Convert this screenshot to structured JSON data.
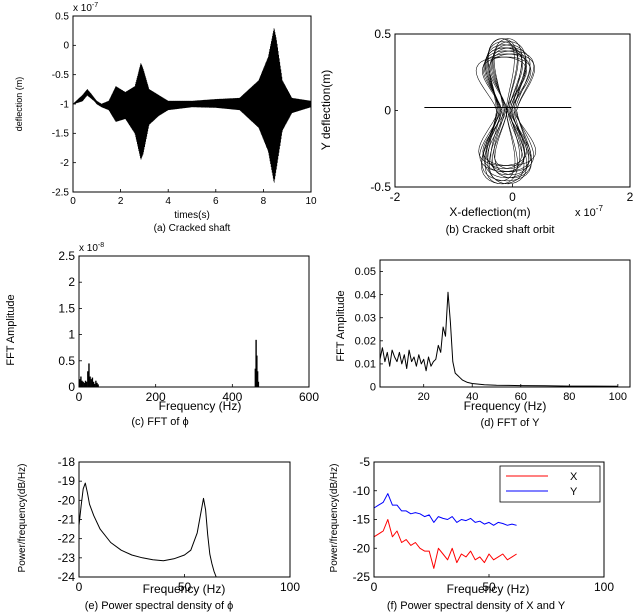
{
  "chart_data": [
    {
      "id": "a",
      "type": "line",
      "caption": "(a) Cracked shaft",
      "xlabel": "times(s)",
      "ylabel": "deflection (m)",
      "y_exponent": "x 10^-7",
      "xlim": [
        0,
        10
      ],
      "ylim": [
        -2.5,
        0.5
      ],
      "x_ticks": [
        0,
        2,
        4,
        6,
        8,
        10
      ],
      "y_ticks": [
        -2.5,
        -2,
        -1.5,
        -1,
        -0.5,
        0,
        0.5
      ],
      "y_tick_labels": [
        "-2.5",
        "-2",
        "-1.5",
        "-1",
        "-0.5",
        "0",
        "0.5"
      ],
      "series": [
        {
          "x": [
            0,
            0.4,
            0.6,
            0.75,
            0.9,
            1.0,
            1.2,
            1.5,
            1.8,
            2.2,
            2.6,
            2.85,
            2.95,
            3.2,
            3.6,
            4.0,
            5.0,
            6.0,
            7.0,
            7.8,
            8.2,
            8.45,
            8.55,
            8.8,
            9.2,
            10.0
          ],
          "upper": [
            -1.0,
            -0.85,
            -0.75,
            -0.82,
            -0.9,
            -0.95,
            -1.0,
            -0.95,
            -0.7,
            -0.8,
            -0.7,
            -0.3,
            -0.4,
            -0.75,
            -0.85,
            -0.95,
            -0.95,
            -0.92,
            -0.9,
            -0.6,
            -0.2,
            0.3,
            0.1,
            -0.6,
            -0.9,
            -0.95
          ],
          "lower": [
            -1.0,
            -0.95,
            -0.85,
            -0.9,
            -0.95,
            -1.0,
            -1.05,
            -1.1,
            -1.3,
            -1.25,
            -1.5,
            -1.95,
            -1.85,
            -1.35,
            -1.2,
            -1.1,
            -1.05,
            -1.06,
            -1.1,
            -1.4,
            -1.8,
            -2.35,
            -2.1,
            -1.45,
            -1.15,
            -1.05
          ]
        }
      ]
    },
    {
      "id": "b",
      "type": "line",
      "caption": "(b) Cracked shaft orbit",
      "xlabel": "X-deflection(m)",
      "ylabel": "Y deflection(m)",
      "x_exponent": "x 10^-7",
      "xlim": [
        -2,
        2
      ],
      "ylim": [
        -0.5,
        0.5
      ],
      "x_ticks": [
        -2,
        0,
        2
      ],
      "y_ticks": [
        -0.5,
        0,
        0.5
      ],
      "y_tick_labels": [
        "-0.5",
        "0",
        "0.5"
      ],
      "series": [
        {
          "x_center": -0.1,
          "y_top": 0.47,
          "y_bottom": -0.48,
          "half_width_top": 0.85,
          "half_width_bottom": 0.9,
          "waist": 0.08,
          "baseline": {
            "x": [
              -1.5,
              1.0
            ],
            "y": 0.02
          }
        }
      ]
    },
    {
      "id": "c",
      "type": "bar",
      "caption": "(c)  FFT of  ϕ",
      "xlabel": "Frequency (Hz)",
      "ylabel": "FFT Amplitude",
      "y_exponent": "x 10^-8",
      "xlim": [
        0,
        600
      ],
      "ylim": [
        0,
        2.5
      ],
      "x_ticks": [
        0,
        200,
        400,
        600
      ],
      "y_ticks": [
        0,
        0.5,
        1,
        1.5,
        2,
        2.5
      ],
      "y_tick_labels": [
        "0",
        "0.5",
        "1",
        "1.5",
        "2",
        "2.5"
      ],
      "series": [
        {
          "x": [
            2,
            5,
            8,
            11,
            14,
            17,
            20,
            23,
            26,
            29,
            32,
            35,
            38,
            41,
            44,
            47,
            50,
            460,
            462,
            464,
            466,
            468
          ],
          "y": [
            0.15,
            0.2,
            0.12,
            0.1,
            0.08,
            0.12,
            0.1,
            0.3,
            0.45,
            0.2,
            0.15,
            0.18,
            0.1,
            0.06,
            0.12,
            0.08,
            0.05,
            0.35,
            0.9,
            0.6,
            0.3,
            0.1
          ]
        }
      ]
    },
    {
      "id": "d",
      "type": "line",
      "caption": "(d)   FFT of Y",
      "xlabel": "Frequency (Hz)",
      "ylabel": "FFT Amplitude",
      "xlim": [
        2,
        105
      ],
      "ylim": [
        0,
        0.055
      ],
      "x_ticks": [
        20,
        40,
        60,
        80,
        100
      ],
      "y_ticks": [
        0,
        0.01,
        0.02,
        0.03,
        0.04,
        0.05
      ],
      "y_tick_labels": [
        "0",
        "0.01",
        "0.02",
        "0.03",
        "0.04",
        "0.05"
      ],
      "series": [
        {
          "x": [
            2,
            3,
            4,
            5,
            6,
            7,
            8,
            9,
            10,
            11,
            12,
            13,
            14,
            15,
            16,
            17,
            18,
            19,
            20,
            21,
            22,
            23,
            24,
            25,
            26,
            27,
            28,
            29,
            30,
            31,
            32,
            33,
            34,
            35,
            36,
            38,
            40,
            45,
            50,
            55,
            60,
            70,
            80,
            90,
            100
          ],
          "y": [
            0.012,
            0.017,
            0.011,
            0.015,
            0.009,
            0.016,
            0.013,
            0.011,
            0.015,
            0.01,
            0.014,
            0.008,
            0.016,
            0.011,
            0.013,
            0.009,
            0.014,
            0.01,
            0.012,
            0.007,
            0.013,
            0.009,
            0.011,
            0.012,
            0.018,
            0.015,
            0.026,
            0.022,
            0.041,
            0.028,
            0.011,
            0.006,
            0.005,
            0.004,
            0.003,
            0.002,
            0.0015,
            0.001,
            0.0008,
            0.0007,
            0.0006,
            0.0005,
            0.0004,
            0.0004,
            0.0003
          ]
        }
      ]
    },
    {
      "id": "e",
      "type": "line",
      "caption": "(e) Power spectral density of  ϕ",
      "xlabel": "Frequency (Hz)",
      "ylabel": "Power/frequency(dB/Hz)",
      "xlim": [
        0,
        100
      ],
      "ylim": [
        -24,
        -18
      ],
      "x_ticks": [
        0,
        50,
        100
      ],
      "y_ticks": [
        -24,
        -23,
        -22,
        -21,
        -20,
        -19,
        -18
      ],
      "y_tick_labels": [
        "-24",
        "-23",
        "-22",
        "-21",
        "-20",
        "-19",
        "-18"
      ],
      "series": [
        {
          "x": [
            0,
            1,
            2,
            3,
            4,
            5,
            7,
            10,
            15,
            20,
            25,
            30,
            35,
            40,
            45,
            50,
            53,
            56,
            58,
            59,
            60,
            61,
            62,
            63,
            64,
            65
          ],
          "y": [
            -21.3,
            -20.3,
            -19.4,
            -19.1,
            -19.6,
            -20.2,
            -20.8,
            -21.5,
            -22.2,
            -22.6,
            -22.85,
            -23.0,
            -23.1,
            -23.15,
            -23.05,
            -22.85,
            -22.6,
            -21.7,
            -20.5,
            -19.9,
            -20.5,
            -21.8,
            -22.8,
            -23.3,
            -23.7,
            -24.0
          ]
        }
      ]
    },
    {
      "id": "f",
      "type": "line",
      "caption": "(f) Power spectral density of  X and Y",
      "xlabel": "Frequency (Hz)",
      "ylabel": "Power/frequency(dB/Hz)",
      "xlim": [
        0,
        100
      ],
      "ylim": [
        -25,
        -5
      ],
      "x_ticks": [
        0,
        50,
        100
      ],
      "y_ticks": [
        -25,
        -20,
        -15,
        -10,
        -5
      ],
      "y_tick_labels": [
        "-25",
        "-20",
        "-15",
        "-10",
        "-5"
      ],
      "legend_position": "top-right",
      "series": [
        {
          "name": "X",
          "color": "#ff0000",
          "x": [
            0,
            2,
            4,
            6,
            8,
            10,
            12,
            14,
            16,
            18,
            20,
            22,
            24,
            26,
            28,
            30,
            32,
            34,
            36,
            38,
            40,
            42,
            44,
            46,
            48,
            50,
            52,
            54,
            56,
            58,
            60,
            62
          ],
          "y": [
            -18,
            -17.5,
            -17,
            -15,
            -18,
            -17,
            -19,
            -18.5,
            -19.5,
            -19,
            -20,
            -20.5,
            -20.5,
            -23.5,
            -20,
            -21,
            -22,
            -20,
            -22.5,
            -21,
            -21.5,
            -20.5,
            -22,
            -21.5,
            -22.5,
            -21,
            -22,
            -21.5,
            -21,
            -22,
            -21.5,
            -21
          ]
        },
        {
          "name": "Y",
          "color": "#0000ff",
          "x": [
            0,
            2,
            4,
            6,
            8,
            10,
            12,
            14,
            16,
            18,
            20,
            22,
            24,
            26,
            28,
            30,
            32,
            34,
            36,
            38,
            40,
            42,
            44,
            46,
            48,
            50,
            52,
            54,
            56,
            58,
            60,
            62
          ],
          "y": [
            -13,
            -12.5,
            -12,
            -10.5,
            -12.5,
            -12.5,
            -13.5,
            -13.5,
            -14,
            -13.8,
            -14,
            -14.5,
            -14.2,
            -15.5,
            -14.5,
            -14.8,
            -15,
            -14.5,
            -15.5,
            -15,
            -15.2,
            -14.8,
            -15.5,
            -15.3,
            -15.8,
            -15.5,
            -16,
            -15.5,
            -15.7,
            -16,
            -15.8,
            -16
          ]
        }
      ]
    }
  ]
}
